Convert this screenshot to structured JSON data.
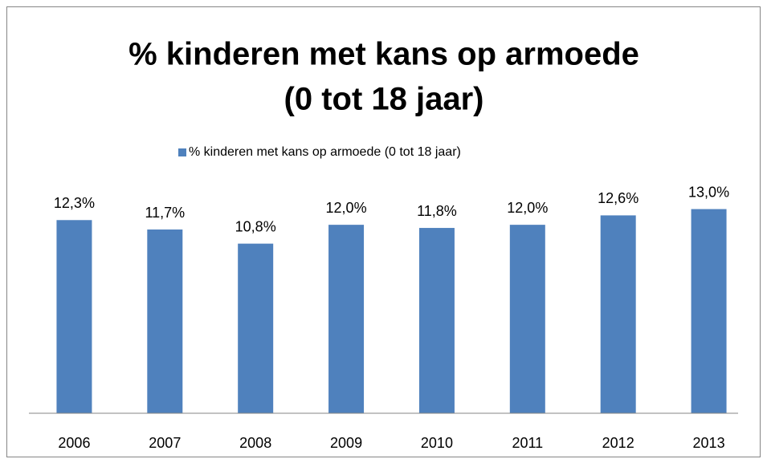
{
  "chart_data": {
    "type": "bar",
    "title": [
      "% kinderen met kans op armoede",
      "(0 tot 18 jaar)"
    ],
    "categories": [
      "2006",
      "2007",
      "2008",
      "2009",
      "2010",
      "2011",
      "2012",
      "2013"
    ],
    "series": [
      {
        "name": "% kinderen met kans op armoede (0 tot 18 jaar)",
        "color": "#4f81bd",
        "values": [
          12.3,
          11.7,
          10.8,
          12.0,
          11.8,
          12.0,
          12.6,
          13.0
        ],
        "value_labels": [
          "12,3%",
          "11,7%",
          "10,8%",
          "12,0%",
          "11,8%",
          "12,0%",
          "12,6%",
          "13,0%"
        ]
      }
    ],
    "ylim": [
      0,
      14
    ],
    "legend": "top"
  }
}
